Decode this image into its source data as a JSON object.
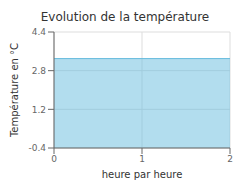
{
  "chart_data": {
    "type": "area",
    "title": "Evolution de la température",
    "xlabel": "heure par heure",
    "ylabel": "Température en °C",
    "x": [
      0,
      2
    ],
    "values": [
      3.3,
      3.3
    ],
    "color": "#66bbdd",
    "xlim": [
      0,
      2
    ],
    "ylim": [
      -0.4,
      4.4
    ],
    "xticks": [
      0,
      1,
      2
    ],
    "yticks": [
      -0.4,
      1.2,
      2.8,
      4.4
    ],
    "grid": true
  }
}
